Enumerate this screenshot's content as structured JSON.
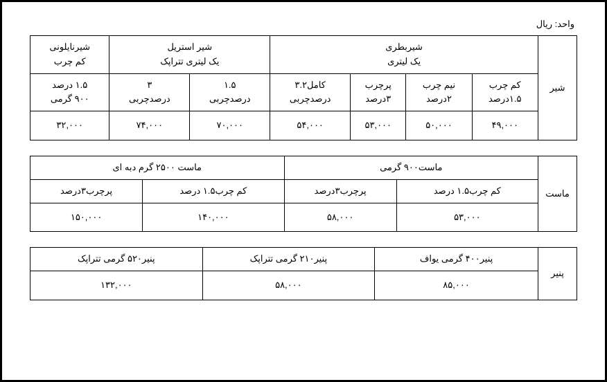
{
  "unit_label": "واحد: ریال",
  "table1": {
    "row_label": "شیر",
    "group_bottle": "شیربطری\nیک لیتری",
    "group_tetra": "شیر استریل\nیک لیتری تتراپک",
    "group_nylon": "شیرنایلونی\nکم چرب",
    "sub_h1": "کم چرب\n۱.۵درصد",
    "sub_h2": "نیم چرب\n۲درصد",
    "sub_h3": "پرچرب\n۳درصد",
    "sub_h4": "کامل۳.۲\nدرصدچربی",
    "sub_h5": "۱.۵\nدرصدچربی",
    "sub_h6": "۳\nدرصدچربی",
    "sub_h7": "۱.۵ درصد\n۹۰۰ گرمی",
    "p1": "۴۹,۰۰۰",
    "p2": "۵۰,۰۰۰",
    "p3": "۵۳,۰۰۰",
    "p4": "۵۴,۰۰۰",
    "p5": "۷۰,۰۰۰",
    "p6": "۷۴,۰۰۰",
    "p7": "۳۲,۰۰۰"
  },
  "table2": {
    "row_label": "ماست",
    "group_900": "ماست۹۰۰ گرمی",
    "group_2500": "ماست ۲۵۰۰ گرم دبه ای",
    "sub_h1": "کم چرب۱.۵ درصد",
    "sub_h2": "پرچرب۳درصد",
    "sub_h3": "کم چرب۱.۵ درصد",
    "sub_h4": "پرچرب۳درصد",
    "p1": "۵۳,۰۰۰",
    "p2": "۵۸,۰۰۰",
    "p3": "۱۴۰,۰۰۰",
    "p4": "۱۵۰,۰۰۰"
  },
  "table3": {
    "row_label": "پنیر",
    "h1": "پنیر۴۰۰ گرمی یواف",
    "h2": "پنیر۲۱۰ گرمی تتراپک",
    "h3": "پنیر۵۲۰ گرمی تتراپک",
    "p1": "۸۵,۰۰۰",
    "p2": "۵۸,۰۰۰",
    "p3": "۱۳۲,۰۰۰"
  }
}
